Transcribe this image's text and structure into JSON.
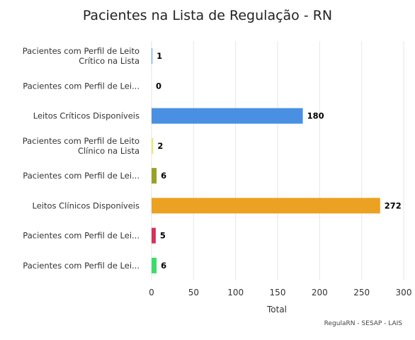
{
  "chart_data": {
    "type": "bar",
    "orientation": "horizontal",
    "title": "Pacientes na Lista de Regulação - RN",
    "xlabel": "Total",
    "ylabel": "",
    "xlim": [
      0,
      300
    ],
    "xticks": [
      "0",
      "50",
      "100",
      "150",
      "200",
      "250",
      "300"
    ],
    "grid": true,
    "legend": "none",
    "credit": "RegulaRN - SESAP - LAIS",
    "categories": [
      [
        "Pacientes com Perfil de Leito",
        "Crítico na Lista"
      ],
      [
        "Pacientes com Perfil de Lei..."
      ],
      [
        "Leitos Críticos Disponíveis"
      ],
      [
        "Pacientes com Perfil de Leito",
        "Clínico na Lista"
      ],
      [
        "Pacientes com Perfil de Lei..."
      ],
      [
        "Leitos Clínicos Disponíveis"
      ],
      [
        "Pacientes com Perfil de Lei..."
      ],
      [
        "Pacientes com Perfil de Lei..."
      ]
    ],
    "values": [
      1,
      0,
      180,
      2,
      6,
      272,
      5,
      6
    ],
    "data_labels": [
      "1",
      "0",
      "180",
      "2",
      "6",
      "272",
      "5",
      "6"
    ],
    "colors": [
      "#6aa9e8",
      "#5a5a5a",
      "#4a90e2",
      "#e6ea7a",
      "#9aa12a",
      "#eba122",
      "#d6335a",
      "#3ddc6a"
    ]
  }
}
